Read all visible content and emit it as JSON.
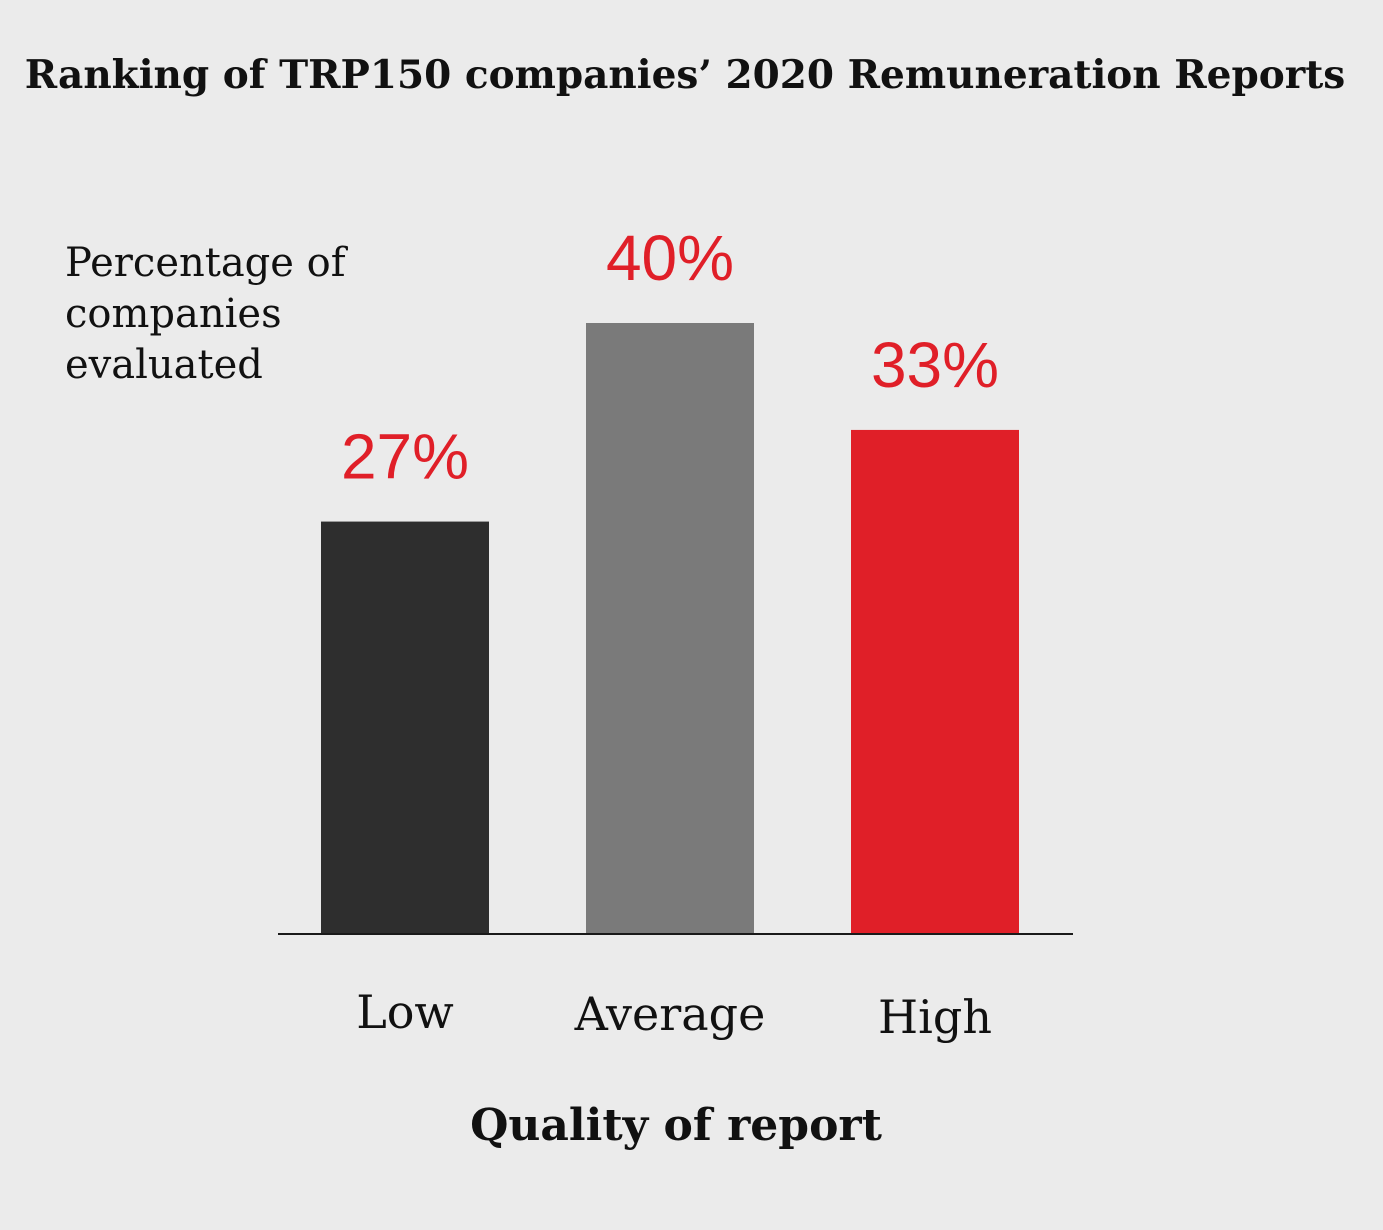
{
  "chart_data": {
    "type": "bar",
    "title": "Ranking of TRP150 companies’ 2020 Remuneration Reports",
    "ylabel_lines": [
      "Percentage of",
      "companies",
      "evaluated"
    ],
    "xlabel": "Quality of report",
    "categories": [
      "Low",
      "Average",
      "High"
    ],
    "values": [
      27,
      40,
      33
    ],
    "value_labels": [
      "27%",
      "40%",
      "33%"
    ],
    "bar_colors": [
      "#2e2e2e",
      "#7a7a7a",
      "#e01f28"
    ],
    "label_color": "#e01f28",
    "ylim": [
      0,
      40
    ],
    "grid": false,
    "legend": "none"
  }
}
